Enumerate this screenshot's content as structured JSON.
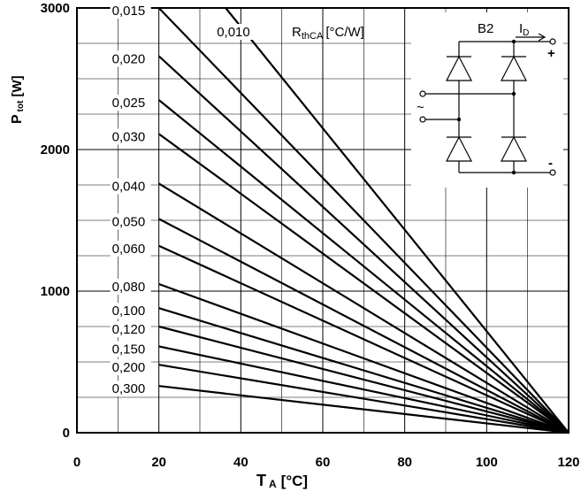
{
  "chart_data": {
    "type": "line",
    "xlabel_main": "T",
    "xlabel_sub": "A",
    "xlabel_unit": "[°C]",
    "ylabel_main": "P",
    "ylabel_sub": "tot",
    "ylabel_unit": "[W]",
    "xlim": [
      0,
      120
    ],
    "ylim": [
      0,
      3000
    ],
    "x_ticks": [
      0,
      20,
      40,
      60,
      80,
      100,
      120
    ],
    "x_tick_labels": [
      "0",
      "20",
      "40",
      "60",
      "80",
      "100",
      "120"
    ],
    "y_ticks": [
      0,
      1000,
      2000,
      3000
    ],
    "y_tick_labels": [
      "0",
      "1000",
      "2000",
      "3000"
    ],
    "grid": true,
    "legend_title_main": "R",
    "legend_title_sub": "thCA",
    "legend_title_unit": "[°C/W]",
    "end_point": [
      120,
      0
    ],
    "series": [
      {
        "name": "0,010",
        "x": [
          36.3,
          120
        ],
        "y": [
          3000,
          0
        ]
      },
      {
        "name": "0,015",
        "x": [
          20,
          120
        ],
        "y": [
          3000,
          0
        ]
      },
      {
        "name": "0,020",
        "x": [
          20,
          120
        ],
        "y": [
          2660,
          0
        ]
      },
      {
        "name": "0,025",
        "x": [
          20,
          120
        ],
        "y": [
          2350,
          0
        ]
      },
      {
        "name": "0,030",
        "x": [
          20,
          120
        ],
        "y": [
          2110,
          0
        ]
      },
      {
        "name": "0,040",
        "x": [
          20,
          120
        ],
        "y": [
          1760,
          0
        ]
      },
      {
        "name": "0,050",
        "x": [
          20,
          120
        ],
        "y": [
          1510,
          0
        ]
      },
      {
        "name": "0,060",
        "x": [
          20,
          120
        ],
        "y": [
          1320,
          0
        ]
      },
      {
        "name": "0,080",
        "x": [
          20,
          120
        ],
        "y": [
          1050,
          0
        ]
      },
      {
        "name": "0,100",
        "x": [
          20,
          120
        ],
        "y": [
          880,
          0
        ]
      },
      {
        "name": "0,120",
        "x": [
          20,
          120
        ],
        "y": [
          750,
          0
        ]
      },
      {
        "name": "0,150",
        "x": [
          20,
          120
        ],
        "y": [
          610,
          0
        ]
      },
      {
        "name": "0,200",
        "x": [
          20,
          120
        ],
        "y": [
          480,
          0
        ]
      },
      {
        "name": "0,300",
        "x": [
          20,
          120
        ],
        "y": [
          330,
          0
        ]
      }
    ]
  },
  "circuit": {
    "name": "B2",
    "current_main": "I",
    "current_sub": "D",
    "plus": "+",
    "minus": "-",
    "ac": "~"
  }
}
